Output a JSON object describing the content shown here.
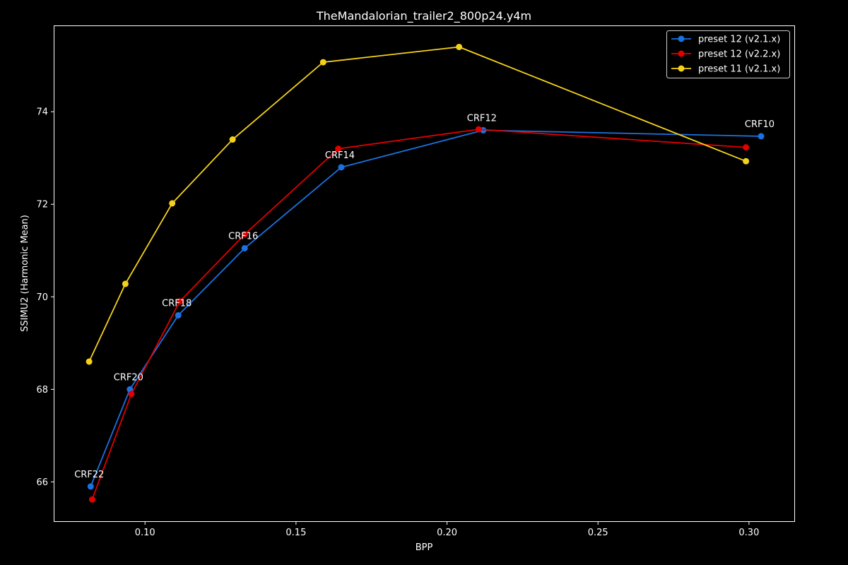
{
  "chart_data": {
    "type": "line",
    "title": "TheMandalorian_trailer2_800p24.y4m",
    "xlabel": "BPP",
    "ylabel": "SSIMU2 (Harmonic Mean)",
    "xlim": [
      0.07,
      0.315
    ],
    "ylim": [
      65.15,
      75.85
    ],
    "xticks": [
      0.1,
      0.15,
      0.2,
      0.25,
      0.3
    ],
    "xtick_labels": [
      "0.10",
      "0.15",
      "0.20",
      "0.25",
      "0.30"
    ],
    "yticks": [
      66,
      68,
      70,
      72,
      74
    ],
    "ytick_labels": [
      "66",
      "68",
      "70",
      "72",
      "74"
    ],
    "grid": false,
    "legend_position": "top-right",
    "series": [
      {
        "name": "preset 12 (v2.1.x)",
        "color": "#1a72e0",
        "x": [
          0.082,
          0.095,
          0.111,
          0.133,
          0.165,
          0.212,
          0.304
        ],
        "y": [
          65.9,
          68.0,
          69.6,
          71.05,
          72.8,
          73.6,
          73.47
        ]
      },
      {
        "name": "preset 12 (v2.2.x)",
        "color": "#e00000",
        "x": [
          0.0825,
          0.0955,
          0.1115,
          0.133,
          0.164,
          0.2105,
          0.299
        ],
        "y": [
          65.62,
          67.9,
          69.9,
          71.35,
          73.2,
          73.62,
          73.23
        ]
      },
      {
        "name": "preset 11 (v2.1.x)",
        "color": "#f5d21a",
        "x": [
          0.0815,
          0.0935,
          0.109,
          0.129,
          0.159,
          0.204,
          0.299
        ],
        "y": [
          68.6,
          70.28,
          72.02,
          73.4,
          75.07,
          75.4,
          72.93
        ]
      }
    ],
    "annotations": [
      {
        "text": "CRF22",
        "x": 0.082,
        "y": 65.9
      },
      {
        "text": "CRF20",
        "x": 0.095,
        "y": 68.0
      },
      {
        "text": "CRF18",
        "x": 0.111,
        "y": 69.6
      },
      {
        "text": "CRF16",
        "x": 0.133,
        "y": 71.05
      },
      {
        "text": "CRF14",
        "x": 0.165,
        "y": 72.8
      },
      {
        "text": "CRF12",
        "x": 0.212,
        "y": 73.6
      },
      {
        "text": "CRF10",
        "x": 0.304,
        "y": 73.47
      }
    ]
  }
}
